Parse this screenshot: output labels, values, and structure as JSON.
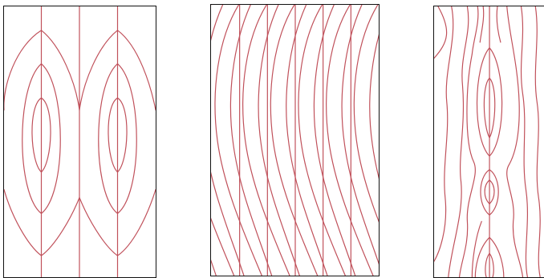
{
  "figure": {
    "description_visible_text": "",
    "line_color": "#c0505a",
    "frame_color": "#111111",
    "background": "#ffffff",
    "panels": [
      {
        "id": "panel-1",
        "pattern": "nested-elliptical-growth-rings"
      },
      {
        "id": "panel-2",
        "pattern": "diagonal-arc-growth-rings"
      },
      {
        "id": "panel-3",
        "pattern": "irregular-wavy-growth-rings"
      }
    ]
  }
}
